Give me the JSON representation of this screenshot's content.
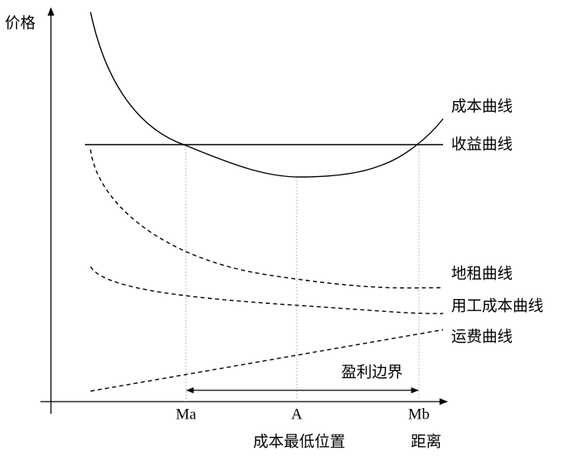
{
  "axes": {
    "y_label": "价格",
    "x_label": "距离"
  },
  "curves": [
    {
      "label": "成本曲线"
    },
    {
      "label": "收益曲线"
    },
    {
      "label": "地租曲线"
    },
    {
      "label": "用工成本曲线"
    },
    {
      "label": "运费曲线"
    }
  ],
  "points": [
    {
      "label": "Ma"
    },
    {
      "label": "A"
    },
    {
      "label": "Mb"
    }
  ],
  "annotations": {
    "lowest_cost": "成本最低位置",
    "profit_margin": "盈利边界"
  }
}
